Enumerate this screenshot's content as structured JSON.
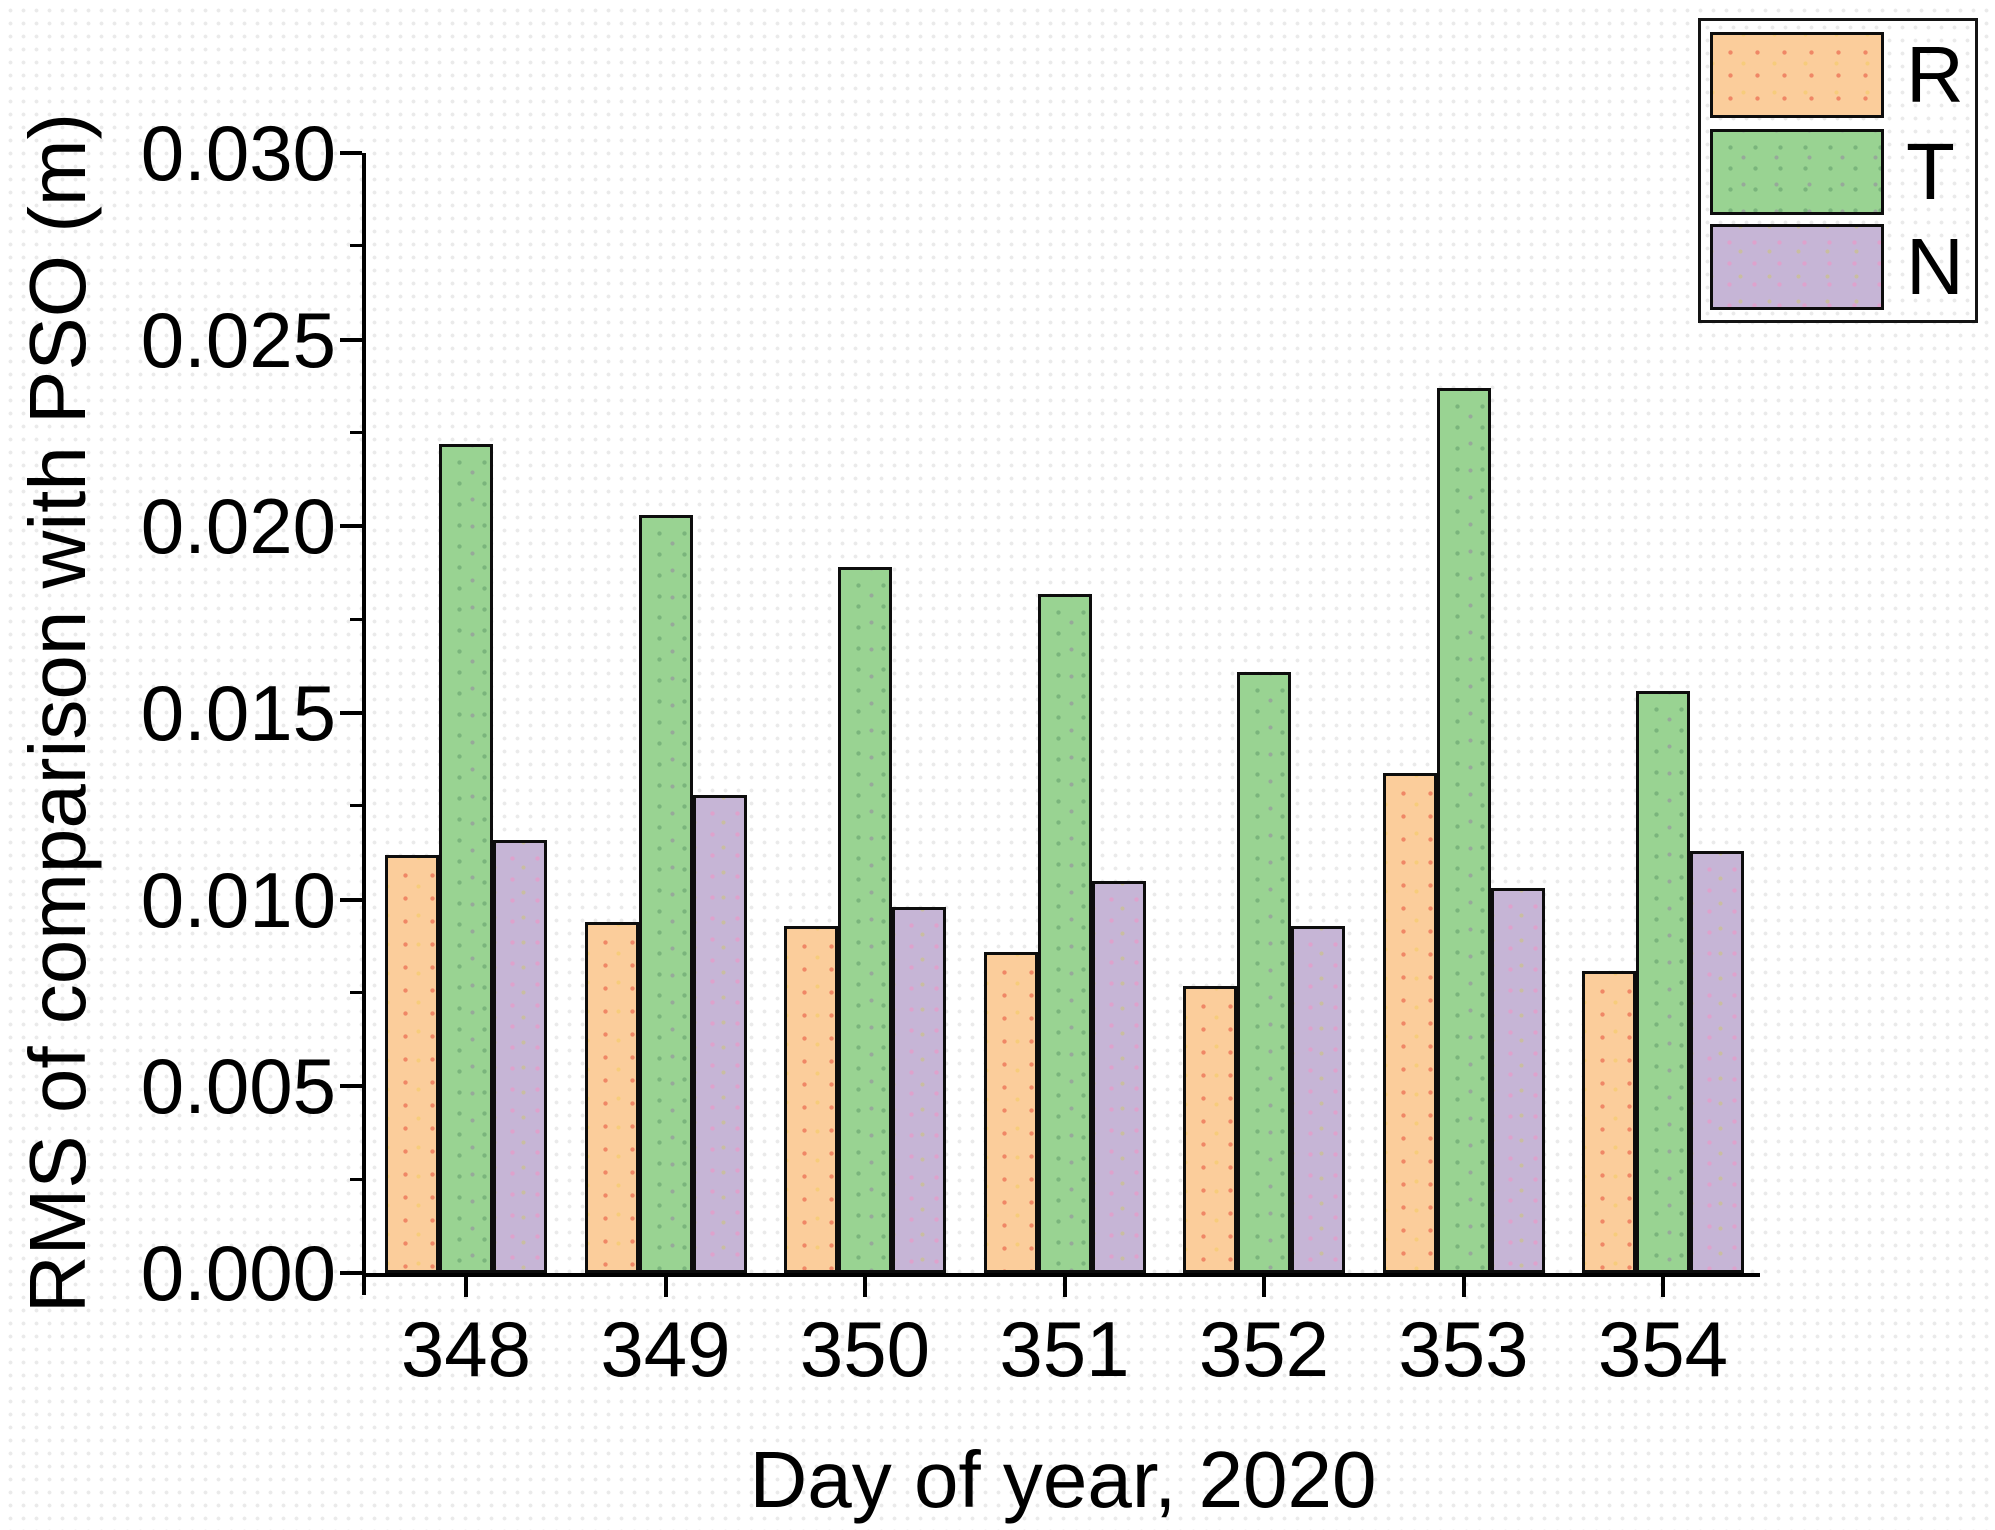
{
  "chart_data": {
    "type": "bar",
    "title": "",
    "xlabel": "Day of year, 2020",
    "ylabel": "RMS of comparison with PSO (m)",
    "categories": [
      "348",
      "349",
      "350",
      "351",
      "352",
      "353",
      "354"
    ],
    "series": [
      {
        "name": "R",
        "color": "#fbcd9b",
        "values": [
          0.0112,
          0.0094,
          0.0093,
          0.0086,
          0.0077,
          0.0134,
          0.0081
        ]
      },
      {
        "name": "T",
        "color": "#99d392",
        "values": [
          0.0222,
          0.0203,
          0.0189,
          0.0182,
          0.0161,
          0.0237,
          0.0156
        ]
      },
      {
        "name": "N",
        "color": "#c6b5d6",
        "values": [
          0.0116,
          0.0128,
          0.0098,
          0.0105,
          0.0093,
          0.0103,
          0.0113
        ]
      }
    ],
    "ylim": [
      0,
      0.03
    ],
    "ytick_step": 0.005,
    "ytick_minor_step": 0.0025,
    "ytick_labels": [
      "0.000",
      "0.005",
      "0.010",
      "0.015",
      "0.020",
      "0.025",
      "0.030"
    ],
    "grid": false,
    "bar_edge_color": "#0d0d0d",
    "axis_color": "#000000",
    "legend": {
      "position": "top-right",
      "entries": [
        "R",
        "T",
        "N"
      ]
    }
  }
}
